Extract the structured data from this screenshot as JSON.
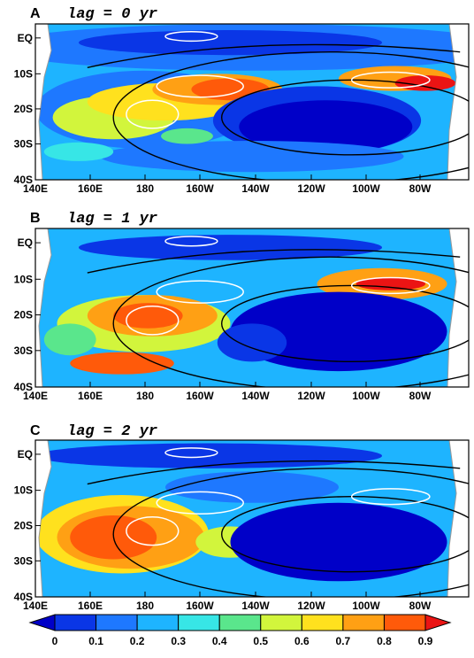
{
  "chart_data": {
    "type": "heatmap",
    "colorbar": {
      "levels": [
        "0",
        "0.1",
        "0.2",
        "0.3",
        "0.4",
        "0.5",
        "0.6",
        "0.7",
        "0.8",
        "0.9"
      ],
      "colors": [
        "#0000c8",
        "#0a36e6",
        "#1e78ff",
        "#1eb4ff",
        "#37e6e6",
        "#5ae68c",
        "#d2f53c",
        "#ffe11e",
        "#ffa014",
        "#ff5a0a",
        "#eb1414"
      ],
      "extend": "both"
    },
    "x_tick_labels": [
      "140E",
      "160E",
      "180",
      "160W",
      "140W",
      "120W",
      "100W",
      "80W"
    ],
    "y_tick_labels": [
      "EQ",
      "10S",
      "20S",
      "30S",
      "40S"
    ],
    "xlim": [
      "140E",
      "70W"
    ],
    "ylim": [
      "40S",
      "4N"
    ],
    "land_color": "#ffffff",
    "coast_color": "#999999",
    "panels": [
      {
        "letter": "A",
        "title": "lag = 0 yr"
      },
      {
        "letter": "B",
        "title": "lag = 1 yr"
      },
      {
        "letter": "C",
        "title": "lag = 2 yr"
      }
    ]
  }
}
